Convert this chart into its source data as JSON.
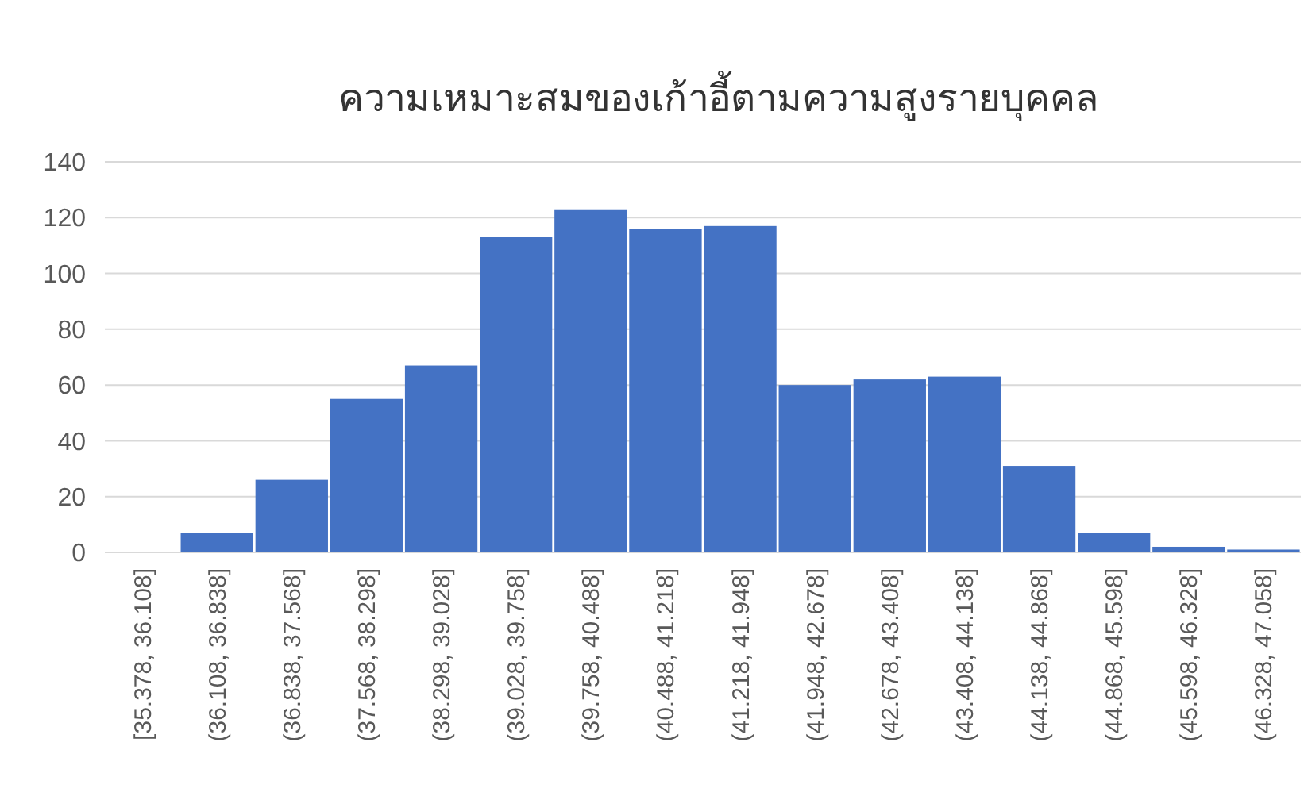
{
  "chart_data": {
    "type": "bar",
    "title": "ความเหมาะสมของเก้าอี้ตามความสูงรายบุคคล",
    "categories": [
      "[35.378, 36.108]",
      "(36.108, 36.838]",
      "(36.838, 37.568]",
      "(37.568, 38.298]",
      "(38.298, 39.028]",
      "(39.028, 39.758]",
      "(39.758, 40.488]",
      "(40.488, 41.218]",
      "(41.218, 41.948]",
      "(41.948, 42.678]",
      "(42.678, 43.408]",
      "(43.408, 44.138]",
      "(44.138, 44.868]",
      "(44.868, 45.598]",
      "(45.598, 46.328]",
      "(46.328, 47.058]"
    ],
    "values": [
      0,
      7,
      26,
      55,
      67,
      113,
      123,
      116,
      117,
      60,
      62,
      63,
      31,
      7,
      2,
      1
    ],
    "color": "#4472c4",
    "ylim": [
      0,
      140
    ],
    "yticks": [
      0,
      20,
      40,
      60,
      80,
      100,
      120,
      140
    ],
    "grid": "y"
  }
}
